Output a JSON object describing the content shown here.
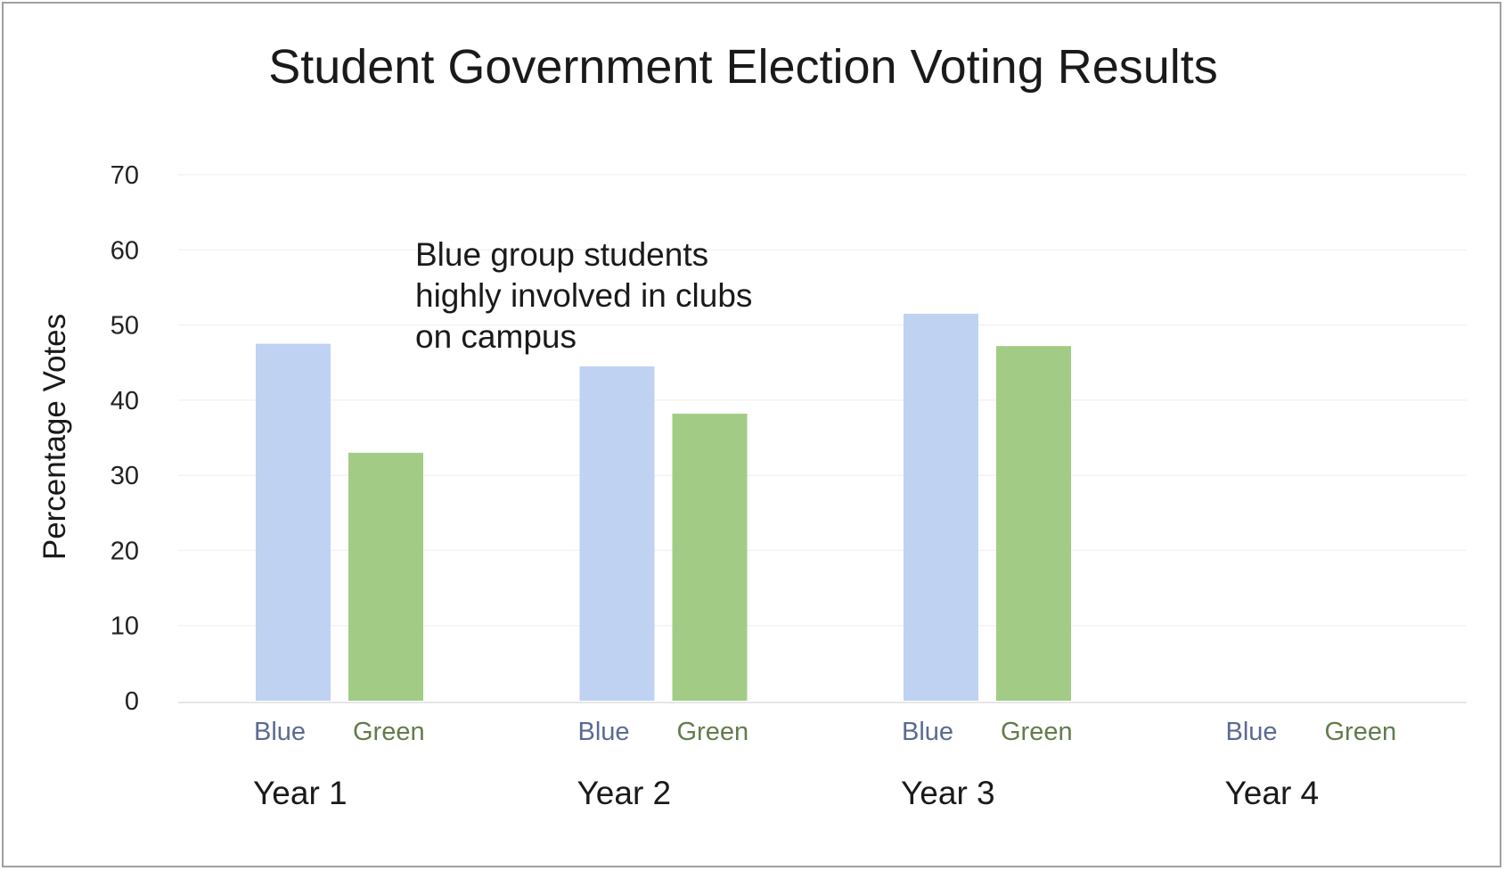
{
  "chart_data": {
    "type": "bar",
    "title": "Student Government Election Voting Results",
    "ylabel": "Percentage Votes",
    "xlabel": "",
    "ylim": [
      0,
      70
    ],
    "yticks": [
      0,
      10,
      20,
      30,
      40,
      50,
      60,
      70
    ],
    "grid": true,
    "categories": [
      "Year 1",
      "Year 2",
      "Year 3",
      "Year 4"
    ],
    "series": [
      {
        "name": "Blue",
        "color": "#bfd2f2",
        "label_color": "#5a6a95",
        "values": [
          47.5,
          44.5,
          51.5,
          null
        ]
      },
      {
        "name": "Green",
        "color": "#a2cc86",
        "label_color": "#627c4b",
        "values": [
          33,
          38.2,
          47.2,
          null
        ]
      }
    ],
    "annotation": {
      "lines": [
        "Blue group students",
        "highly involved in clubs",
        "on campus"
      ]
    }
  }
}
